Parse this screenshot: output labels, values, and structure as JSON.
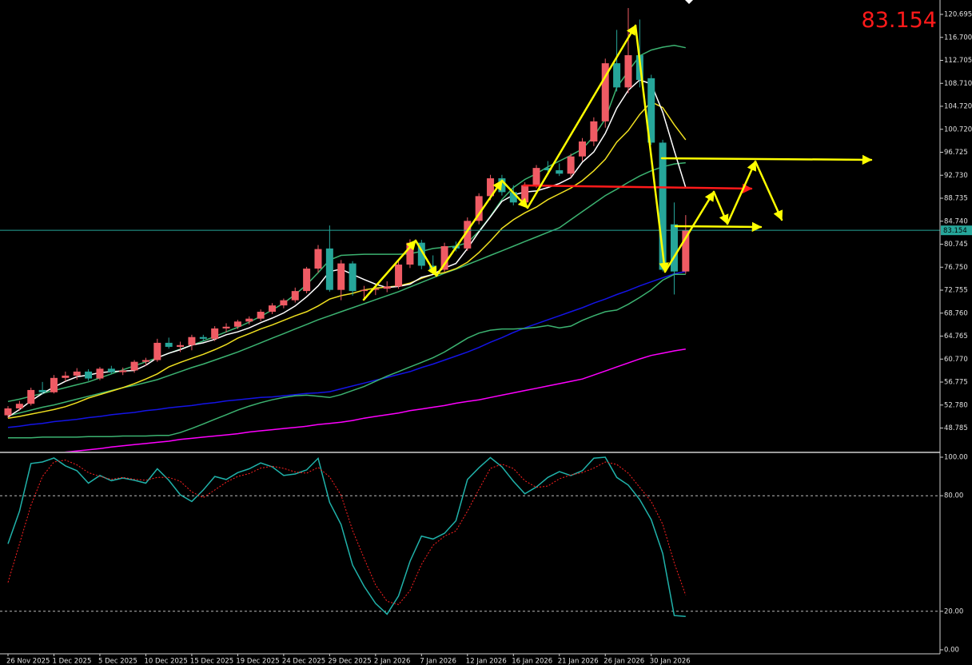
{
  "chart_data": [
    {
      "type": "candlestick",
      "categories": [
        "26 Nov 2025",
        null,
        null,
        null,
        "1 Dec 2025",
        null,
        null,
        null,
        "5 Dec 2025",
        null,
        null,
        null,
        "10 Dec 2025",
        null,
        null,
        null,
        "15 Dec 2025",
        null,
        null,
        null,
        "19 Dec 2025",
        null,
        null,
        null,
        "24 Dec 2025",
        null,
        null,
        null,
        "29 Dec 2025",
        null,
        null,
        null,
        "2 Jan 2026",
        null,
        null,
        null,
        "7 Jan 2026",
        null,
        null,
        null,
        "12 Jan 2026",
        null,
        null,
        null,
        "16 Jan 2026",
        null,
        null,
        null,
        "21 Jan 2026",
        null,
        null,
        null,
        "26 Jan 2026",
        null,
        null,
        null,
        "30 Jan 2026",
        null,
        null,
        null
      ],
      "open": [
        51.0,
        52.2,
        53.0,
        55.4,
        55.0,
        57.5,
        57.9,
        58.6,
        57.4,
        59.1,
        58.5,
        58.8,
        60.3,
        60.6,
        63.6,
        62.9,
        63.2,
        64.6,
        64.3,
        66.1,
        66.4,
        67.3,
        67.8,
        69.0,
        70.1,
        71.0,
        72.6,
        76.5,
        80.0,
        72.8,
        77.4,
        72.6,
        72.8,
        73.0,
        73.4,
        77.2,
        81.0,
        77.0,
        76.3,
        80.4,
        80.0,
        84.8,
        89.1,
        92.2,
        89.8,
        88.0,
        91.0,
        94.0,
        93.6,
        93.0,
        96.0,
        98.6,
        102.1,
        112.2,
        108.0,
        113.6,
        109.6,
        98.4,
        84.2,
        76.0
      ],
      "high": [
        52.6,
        53.5,
        55.8,
        56.8,
        58.0,
        58.6,
        59.2,
        59.0,
        59.4,
        59.6,
        59.3,
        60.6,
        61.0,
        64.3,
        64.5,
        63.8,
        65.0,
        65.0,
        66.5,
        67.0,
        67.6,
        68.2,
        69.4,
        70.5,
        71.3,
        73.2,
        76.8,
        80.6,
        84.0,
        78.0,
        77.8,
        73.5,
        73.6,
        74.3,
        77.8,
        81.6,
        81.5,
        78.8,
        81.0,
        81.2,
        85.4,
        89.6,
        92.8,
        92.8,
        91.0,
        91.5,
        94.5,
        95.2,
        94.8,
        96.5,
        99.2,
        102.8,
        113.0,
        118.0,
        121.8,
        119.8,
        110.2,
        98.9,
        88.0,
        85.8
      ],
      "low": [
        50.5,
        51.8,
        52.7,
        54.6,
        54.8,
        56.9,
        57.2,
        57.0,
        57.1,
        58.2,
        58.0,
        58.4,
        59.6,
        60.3,
        62.6,
        62.0,
        62.3,
        63.8,
        63.9,
        65.4,
        66.0,
        66.8,
        67.4,
        68.6,
        69.6,
        70.6,
        72.2,
        75.8,
        72.5,
        71.0,
        71.8,
        71.0,
        71.9,
        72.4,
        73.0,
        76.6,
        76.4,
        75.8,
        75.9,
        79.5,
        79.6,
        84.2,
        88.4,
        89.2,
        87.5,
        87.4,
        90.5,
        92.8,
        92.6,
        92.4,
        95.2,
        97.8,
        101.0,
        107.3,
        107.0,
        108.0,
        98.0,
        76.0,
        72.0,
        75.6
      ],
      "close": [
        52.2,
        53.0,
        55.4,
        55.0,
        57.5,
        57.9,
        58.6,
        57.4,
        59.1,
        58.5,
        58.8,
        60.3,
        60.6,
        63.6,
        62.9,
        63.2,
        64.6,
        64.3,
        66.1,
        66.4,
        67.3,
        67.8,
        69.0,
        70.1,
        71.0,
        72.6,
        76.5,
        79.9,
        72.8,
        77.4,
        72.6,
        72.8,
        73.0,
        73.4,
        77.2,
        81.0,
        77.0,
        76.3,
        80.4,
        80.0,
        84.8,
        89.1,
        92.2,
        89.8,
        88.0,
        91.0,
        94.0,
        93.6,
        93.0,
        96.0,
        98.6,
        102.1,
        112.2,
        108.0,
        113.6,
        109.3,
        98.4,
        76.3,
        76.0,
        83.154
      ],
      "up_color": "#ef5b64",
      "down_color": "#26a69a",
      "series": [
        {
          "color": "#ff00ff",
          "values": [
            43.6,
            43.8,
            44.0,
            44.2,
            44.4,
            44.6,
            44.8,
            45.0,
            45.2,
            45.5,
            45.7,
            45.9,
            46.1,
            46.3,
            46.5,
            46.8,
            47.0,
            47.2,
            47.4,
            47.6,
            47.8,
            48.1,
            48.3,
            48.5,
            48.7,
            48.9,
            49.1,
            49.4,
            49.6,
            49.8,
            50.1,
            50.5,
            50.8,
            51.1,
            51.4,
            51.8,
            52.1,
            52.4,
            52.7,
            53.1,
            53.4,
            53.7,
            54.1,
            54.5,
            54.9,
            55.3,
            55.7,
            56.1,
            56.5,
            56.9,
            57.3,
            58.0,
            58.7,
            59.4,
            60.1,
            60.8,
            61.4,
            61.8,
            62.2,
            62.5
          ]
        },
        {
          "color": "#1414e6",
          "values": [
            48.9,
            49.1,
            49.4,
            49.6,
            49.9,
            50.1,
            50.3,
            50.6,
            50.8,
            51.1,
            51.3,
            51.5,
            51.8,
            52.0,
            52.3,
            52.5,
            52.7,
            53.0,
            53.2,
            53.5,
            53.7,
            53.9,
            54.1,
            54.2,
            54.4,
            54.6,
            54.8,
            54.9,
            55.1,
            55.6,
            56.1,
            56.6,
            57.1,
            57.6,
            58.1,
            58.6,
            59.3,
            59.9,
            60.6,
            61.3,
            62.0,
            62.8,
            63.7,
            64.5,
            65.4,
            66.2,
            66.9,
            67.6,
            68.3,
            69.0,
            69.7,
            70.5,
            71.2,
            72.0,
            72.7,
            73.5,
            74.2,
            74.9,
            75.6,
            76.0
          ]
        },
        {
          "color": "#3cb371",
          "values": [
            47.1,
            47.1,
            47.1,
            47.2,
            47.2,
            47.2,
            47.2,
            47.3,
            47.3,
            47.3,
            47.4,
            47.4,
            47.4,
            47.5,
            47.5,
            48.0,
            48.7,
            49.5,
            50.3,
            51.1,
            51.9,
            52.6,
            53.2,
            53.7,
            54.1,
            54.4,
            54.5,
            54.3,
            54.1,
            54.6,
            55.3,
            56.0,
            56.9,
            57.8,
            58.6,
            59.4,
            60.2,
            61.0,
            62.0,
            63.2,
            64.4,
            65.3,
            65.8,
            66.0,
            66.0,
            66.1,
            66.3,
            66.6,
            66.2,
            66.5,
            67.5,
            68.3,
            69.0,
            69.3,
            70.3,
            71.5,
            72.8,
            74.5,
            75.5,
            75.5
          ]
        },
        {
          "color": "#3cb371",
          "values": [
            50.9,
            51.4,
            51.9,
            52.4,
            52.8,
            53.3,
            53.8,
            54.3,
            54.8,
            55.3,
            55.8,
            56.2,
            56.7,
            57.2,
            57.9,
            58.6,
            59.3,
            59.9,
            60.6,
            61.3,
            62.0,
            62.8,
            63.6,
            64.4,
            65.2,
            66.0,
            66.8,
            67.6,
            68.3,
            69.0,
            69.7,
            70.4,
            71.1,
            71.8,
            72.5,
            73.3,
            74.1,
            74.9,
            75.7,
            76.4,
            77.2,
            78.0,
            78.8,
            79.6,
            80.4,
            81.2,
            82.0,
            82.8,
            83.6,
            85.0,
            86.4,
            87.8,
            89.2,
            90.3,
            91.5,
            92.6,
            93.5,
            94.2,
            94.7,
            94.9
          ]
        },
        {
          "color": "#3cb371",
          "values": [
            53.4,
            53.8,
            54.3,
            54.8,
            55.3,
            55.8,
            56.3,
            56.8,
            57.5,
            58.2,
            58.9,
            59.6,
            60.3,
            61.0,
            61.8,
            62.5,
            63.2,
            63.9,
            64.7,
            65.5,
            66.3,
            67.2,
            68.2,
            69.3,
            70.5,
            72.0,
            73.7,
            75.8,
            78.0,
            78.8,
            78.9,
            79.0,
            79.0,
            79.0,
            79.0,
            79.1,
            79.5,
            80.0,
            80.2,
            80.4,
            81.0,
            83.0,
            85.6,
            88.5,
            90.6,
            92.0,
            93.0,
            94.2,
            95.2,
            96.2,
            97.3,
            99.5,
            102.5,
            108.0,
            110.8,
            113.5,
            114.5,
            115.0,
            115.3,
            114.9
          ]
        },
        {
          "color": "#f0e020",
          "values": [
            50.5,
            50.8,
            51.2,
            51.6,
            52.0,
            52.5,
            53.2,
            54.0,
            54.6,
            55.2,
            55.8,
            56.5,
            57.3,
            58.2,
            59.4,
            60.2,
            60.9,
            61.6,
            62.4,
            63.3,
            64.4,
            65.2,
            66.0,
            66.7,
            67.5,
            68.3,
            69.0,
            70.0,
            71.2,
            71.8,
            72.2,
            72.8,
            73.1,
            73.3,
            73.5,
            74.0,
            74.8,
            75.5,
            75.8,
            76.5,
            77.6,
            79.3,
            81.3,
            83.5,
            85.0,
            86.2,
            87.2,
            88.5,
            89.5,
            90.5,
            91.8,
            93.5,
            95.5,
            98.5,
            100.5,
            103.3,
            105.5,
            104.5,
            101.5,
            98.9
          ]
        },
        {
          "color": "#ffffff",
          "values": [
            50.7,
            52.0,
            53.5,
            54.8,
            55.9,
            56.9,
            57.7,
            58.0,
            58.4,
            58.6,
            58.7,
            58.8,
            59.7,
            61.0,
            61.8,
            62.4,
            63.2,
            63.6,
            64.2,
            65.0,
            65.5,
            66.2,
            67.1,
            67.9,
            68.8,
            70.0,
            71.6,
            73.5,
            76.0,
            76.4,
            75.5,
            74.6,
            73.8,
            73.2,
            73.4,
            73.8,
            75.0,
            75.5,
            76.6,
            77.4,
            80.0,
            82.9,
            85.5,
            88.2,
            89.3,
            89.8,
            90.0,
            90.6,
            91.3,
            92.3,
            95.0,
            96.8,
            100.0,
            104.4,
            107.5,
            109.3,
            108.6,
            103.7,
            97.0,
            90.6
          ]
        }
      ],
      "price_line": 83.154,
      "price_line_color": "#26a69a",
      "ylim": [
        44.69,
        123.196
      ],
      "yticks": [
        120.695,
        {
          "value": 116.7,
          "label": "116.700"
        },
        112.705,
        {
          "value": 108.71,
          "label": "108.710"
        },
        {
          "value": 104.72,
          "label": "104.720"
        },
        {
          "value": 100.72,
          "label": "100.720"
        },
        96.725,
        {
          "value": 92.73,
          "label": "92.730"
        },
        88.735,
        {
          "value": 84.74,
          "label": "84.740"
        },
        80.745,
        {
          "value": 76.75,
          "label": "76.750"
        },
        72.755,
        {
          "value": 68.76,
          "label": "68.760"
        },
        64.765,
        {
          "value": 60.77,
          "label": "60.770"
        },
        56.775,
        {
          "value": 52.78,
          "label": "52.780"
        },
        48.785
      ]
    },
    {
      "type": "line",
      "series": [
        {
          "color": "#20b2aa",
          "values": [
            55,
            72,
            96.7,
            97.5,
            99.6,
            95.5,
            93.0,
            86.5,
            90.5,
            87.8,
            89.2,
            88.0,
            86.5,
            94.0,
            88.0,
            80.5,
            77.0,
            83.0,
            90.0,
            88.4,
            92.0,
            94.0,
            97.0,
            95.0,
            90.5,
            91.3,
            93.4,
            99.4,
            76.5,
            65.0,
            44.0,
            33.0,
            24.1,
            18.5,
            28.0,
            46.0,
            59.0,
            57.5,
            60.5,
            67.0,
            88.4,
            94.5,
            99.8,
            95.0,
            87.5,
            81.0,
            84.5,
            89.5,
            92.5,
            90.5,
            93.0,
            99.5,
            100,
            89.5,
            85.5,
            78.0,
            67.6,
            50.0,
            17.8,
            17.3
          ]
        },
        {
          "color": "#ff2020",
          "dashed": true,
          "values": [
            35,
            55,
            75,
            90,
            97.5,
            98.5,
            96.0,
            92.0,
            90.0,
            88.5,
            89.5,
            88.5,
            88.0,
            89.5,
            89.5,
            87.5,
            82.0,
            79.0,
            83.0,
            87.0,
            90.0,
            91.5,
            94.3,
            95.3,
            94.2,
            92.3,
            91.7,
            94.7,
            89.8,
            80.3,
            62.0,
            47.5,
            33.7,
            25.2,
            23.5,
            30.8,
            44.3,
            54.2,
            59.0,
            61.7,
            72.0,
            83.3,
            94.2,
            96.4,
            94.1,
            87.8,
            84.3,
            85.0,
            88.8,
            90.8,
            92.0,
            94.3,
            97.5,
            96.2,
            91.7,
            84.3,
            77.0,
            65.2,
            45.1,
            28.4
          ]
        }
      ],
      "ylim": [
        -2.07,
        102.07
      ],
      "yticks": [
        {
          "value": 100,
          "label": "100.00"
        },
        {
          "value": 80,
          "label": "80.00"
        },
        {
          "value": 20,
          "label": "20.00"
        },
        {
          "value": 0,
          "label": "0.00"
        }
      ],
      "levels": [
        80,
        20
      ]
    }
  ]
}
